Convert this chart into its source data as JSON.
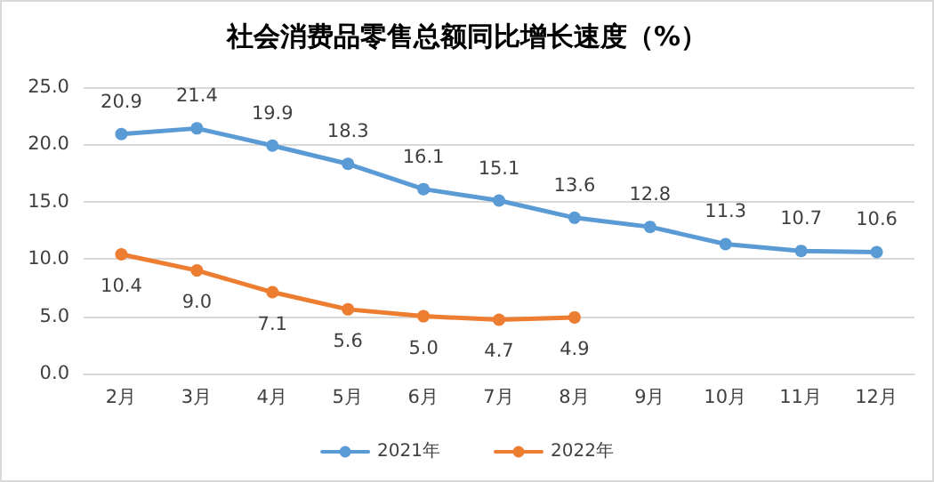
{
  "chart_data": {
    "type": "line",
    "title": "社会消费品零售总额同比增长速度（%）",
    "categories": [
      "2月",
      "3月",
      "4月",
      "5月",
      "6月",
      "7月",
      "8月",
      "9月",
      "10月",
      "11月",
      "12月"
    ],
    "series": [
      {
        "name": "2021年",
        "color": "#5b9bd5",
        "values": [
          20.9,
          21.4,
          19.9,
          18.3,
          16.1,
          15.1,
          13.6,
          12.8,
          11.3,
          10.7,
          10.6
        ],
        "value_labels": [
          "20.9",
          "21.4",
          "19.9",
          "18.3",
          "16.1",
          "15.1",
          "13.6",
          "12.8",
          "11.3",
          "10.7",
          "10.6"
        ]
      },
      {
        "name": "2022年",
        "color": "#ed7d31",
        "values": [
          10.4,
          9.0,
          7.1,
          5.6,
          5.0,
          4.7,
          4.9,
          null,
          null,
          null,
          null
        ],
        "value_labels": [
          "10.4",
          "9.0",
          "7.1",
          "5.6",
          "5.0",
          "4.7",
          "4.9",
          null,
          null,
          null,
          null
        ]
      }
    ],
    "ylim": [
      0,
      25
    ],
    "yticks": [
      {
        "value": 0,
        "label": "0.0"
      },
      {
        "value": 5,
        "label": "5.0"
      },
      {
        "value": 10,
        "label": "10.0"
      },
      {
        "value": 15,
        "label": "15.0"
      },
      {
        "value": 20,
        "label": "20.0"
      },
      {
        "value": 25,
        "label": "25.0"
      }
    ],
    "grid": "y",
    "legend": "bottom",
    "marker": "circle",
    "line_style": "solid"
  }
}
